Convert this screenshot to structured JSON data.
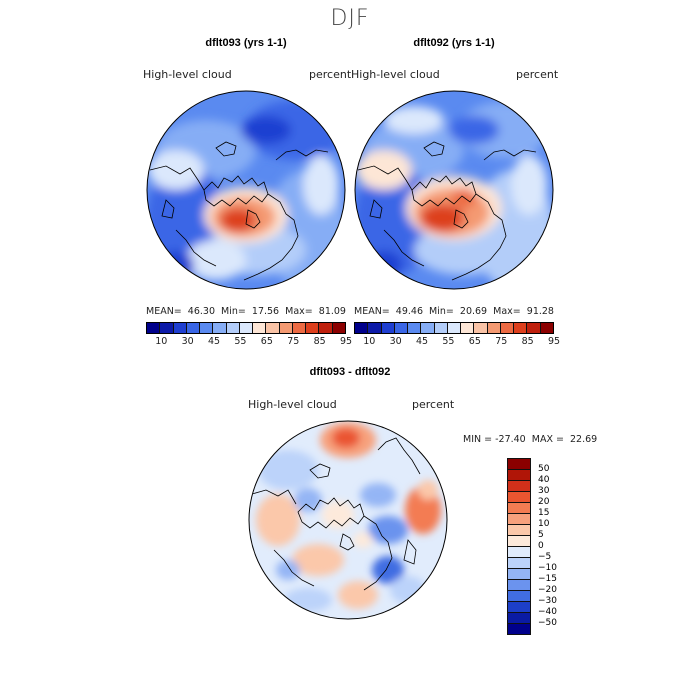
{
  "season": "DJF",
  "panels": [
    {
      "title": "dflt093 (yrs 1-1)",
      "variable": "High-level cloud",
      "units": "percent",
      "stats": "MEAN=  46.30  Min=  17.56  Max=  81.09"
    },
    {
      "title": "dflt092 (yrs 1-1)",
      "variable": "High-level cloud",
      "units": "percent",
      "stats": "MEAN=  49.46  Min=  20.69  Max=  91.28"
    }
  ],
  "colorbar_top": {
    "ticks": [
      "10",
      "30",
      "45",
      "55",
      "65",
      "75",
      "85",
      "95"
    ],
    "colors": [
      "#00008b",
      "#0c1aa8",
      "#1f3fd1",
      "#3a66e6",
      "#5a8af0",
      "#86adf5",
      "#b3cdf9",
      "#dbe8fc",
      "#fde6d6",
      "#f9c3a6",
      "#f49a72",
      "#ec6a43",
      "#dd3f1d",
      "#bf200d",
      "#8b0000"
    ]
  },
  "diff": {
    "title": "dflt093 - dflt092",
    "variable": "High-level cloud",
    "units": "percent",
    "stats": "MIN = -27.40  MAX =  22.69",
    "levels": [
      "50",
      "40",
      "30",
      "20",
      "15",
      "10",
      "5",
      "0",
      "−5",
      "−10",
      "−15",
      "−20",
      "−30",
      "−40",
      "−50"
    ],
    "colors": [
      "#8b0000",
      "#b01507",
      "#d2301a",
      "#ea5530",
      "#f37c52",
      "#f7a17d",
      "#fbc8aa",
      "#fdeadb",
      "#e1ecfc",
      "#bcd3fa",
      "#94b5f5",
      "#6b93ee",
      "#416de2",
      "#1d3fc8",
      "#0a1ba3",
      "#00008b"
    ]
  }
}
